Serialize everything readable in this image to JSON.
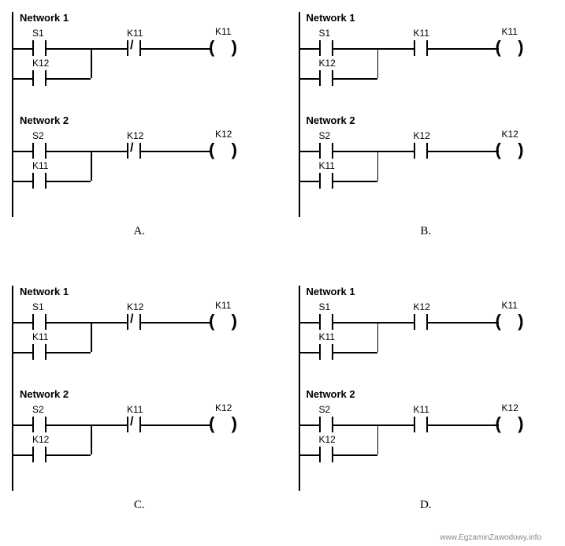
{
  "watermark": "www.EgzaminZawodowy.info",
  "options": [
    {
      "letter": "A.",
      "networks": [
        {
          "title": "Network 1",
          "rung": {
            "branch1": "S1",
            "branch2": "K12",
            "series": "K11",
            "series_nc": true,
            "coil": "K11"
          }
        },
        {
          "title": "Network 2",
          "rung": {
            "branch1": "S2",
            "branch2": "K11",
            "series": "K12",
            "series_nc": true,
            "coil": "K12"
          }
        }
      ]
    },
    {
      "letter": "B.",
      "networks": [
        {
          "title": "Network 1",
          "rung": {
            "branch1": "S1",
            "branch2": "K12",
            "series": "K11",
            "series_nc": false,
            "coil": "K11"
          }
        },
        {
          "title": "Network 2",
          "rung": {
            "branch1": "S2",
            "branch2": "K11",
            "series": "K12",
            "series_nc": false,
            "coil": "K12"
          }
        }
      ]
    },
    {
      "letter": "C.",
      "networks": [
        {
          "title": "Network 1",
          "rung": {
            "branch1": "S1",
            "branch2": "K11",
            "series": "K12",
            "series_nc": true,
            "coil": "K11"
          }
        },
        {
          "title": "Network 2",
          "rung": {
            "branch1": "S2",
            "branch2": "K12",
            "series": "K11",
            "series_nc": true,
            "coil": "K12"
          }
        }
      ]
    },
    {
      "letter": "D.",
      "networks": [
        {
          "title": "Network 1",
          "rung": {
            "branch1": "S1",
            "branch2": "K11",
            "series": "K12",
            "series_nc": false,
            "coil": "K11"
          }
        },
        {
          "title": "Network 2",
          "rung": {
            "branch1": "S2",
            "branch2": "K12",
            "series": "K11",
            "series_nc": false,
            "coil": "K12"
          }
        }
      ]
    }
  ],
  "layout": {
    "net_y": [
      0,
      130
    ],
    "rung_y_offset": 36,
    "branch_gap": 38,
    "contact1_x": 20,
    "contact_w": 30,
    "merge_x": 100,
    "series_x": 140,
    "after_series_x": 200,
    "coil_x": 250,
    "coil_w": 36
  },
  "colors": {
    "line": "#000000",
    "bg": "#ffffff",
    "text": "#000000"
  }
}
